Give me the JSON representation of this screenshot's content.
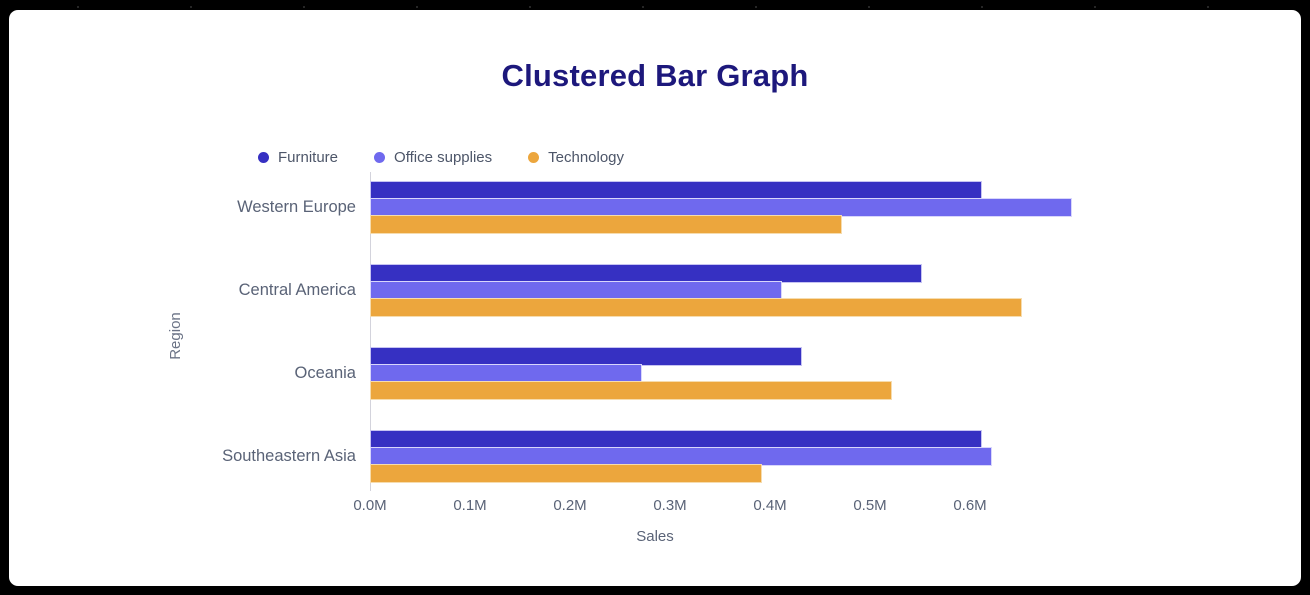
{
  "card": {
    "title": "Clustered Bar Graph"
  },
  "chart_data": {
    "type": "bar",
    "orientation": "horizontal",
    "title": "Clustered Bar Graph",
    "xlabel": "Sales",
    "ylabel": "Region",
    "unit": "M",
    "grid": false,
    "legend_position": "top-left",
    "categories": [
      "Western Europe",
      "Central America",
      "Oceania",
      "Southeastern Asia"
    ],
    "series": [
      {
        "name": "Furniture",
        "color": "#3630c2",
        "edge_color": "#c6c3f2",
        "values": [
          0.61,
          0.55,
          0.43,
          0.61
        ]
      },
      {
        "name": "Office supplies",
        "color": "#6f69ee",
        "edge_color": "#d8d6fb",
        "values": [
          0.7,
          0.41,
          0.27,
          0.62
        ]
      },
      {
        "name": "Technology",
        "color": "#eca63d",
        "edge_color": "#f6dcae",
        "values": [
          0.47,
          0.65,
          0.52,
          0.39
        ]
      }
    ],
    "x_ticks": [
      "0.0M",
      "0.1M",
      "0.2M",
      "0.3M",
      "0.4M",
      "0.5M",
      "0.6M"
    ],
    "x_tick_values": [
      0.0,
      0.1,
      0.2,
      0.3,
      0.4,
      0.5,
      0.6
    ],
    "xlim": [
      0,
      0.73
    ],
    "colors": {
      "title": "#1d187c",
      "axis_text": "#5a6377",
      "legend_text": "#4d5669",
      "axis_line": "#d3d3dc",
      "card_bg": "#ffffff",
      "page_bg": "#000000"
    }
  }
}
